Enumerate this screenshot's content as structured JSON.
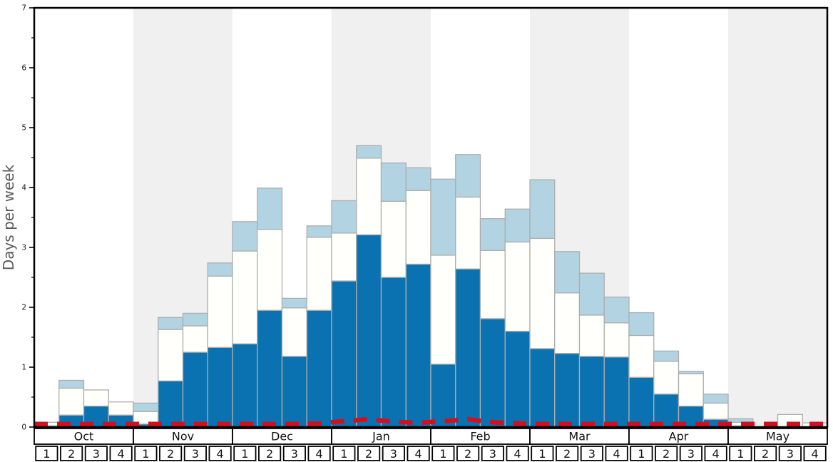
{
  "chart_data": {
    "type": "bar",
    "stacked": true,
    "title": "",
    "xlabel": "",
    "ylabel": "Days per week",
    "ylim": [
      0,
      7
    ],
    "y_major_ticks": [
      0,
      1,
      2,
      3,
      4,
      5,
      6,
      7
    ],
    "y_minor_step": 0.5,
    "grid": false,
    "legend": "none",
    "months": [
      "Oct",
      "Nov",
      "Dec",
      "Jan",
      "Feb",
      "Mar",
      "Apr",
      "May"
    ],
    "week_labels": [
      "1",
      "2",
      "3",
      "4"
    ],
    "shaded_month_indexes": [
      1,
      3,
      5,
      7
    ],
    "categories": [
      "Oct-1",
      "Oct-2",
      "Oct-3",
      "Oct-4",
      "Nov-1",
      "Nov-2",
      "Nov-3",
      "Nov-4",
      "Dec-1",
      "Dec-2",
      "Dec-3",
      "Dec-4",
      "Jan-1",
      "Jan-2",
      "Jan-3",
      "Jan-4",
      "Feb-1",
      "Feb-2",
      "Feb-3",
      "Feb-4",
      "Mar-1",
      "Mar-2",
      "Mar-3",
      "Mar-4",
      "Apr-1",
      "Apr-2",
      "Apr-3",
      "Apr-4",
      "May-1",
      "May-2",
      "May-3",
      "May-4"
    ],
    "series": [
      {
        "name": "dark-blue-segment",
        "color": "#0b72b1",
        "values": [
          0.02,
          0.2,
          0.35,
          0.2,
          0.05,
          0.77,
          1.25,
          1.33,
          1.39,
          1.95,
          1.18,
          1.95,
          2.44,
          3.21,
          2.5,
          2.72,
          1.05,
          2.64,
          1.81,
          1.6,
          1.31,
          1.23,
          1.18,
          1.17,
          0.83,
          0.55,
          0.35,
          0.13,
          0.02,
          0.0,
          0.0,
          0.0
        ]
      },
      {
        "name": "white-segment",
        "color": "#fffffb",
        "values": [
          0.06,
          0.45,
          0.27,
          0.22,
          0.21,
          0.86,
          0.44,
          1.19,
          1.55,
          1.35,
          0.81,
          1.22,
          0.8,
          1.28,
          1.27,
          1.23,
          1.82,
          1.2,
          1.14,
          1.49,
          1.84,
          1.01,
          0.69,
          0.57,
          0.7,
          0.55,
          0.54,
          0.27,
          0.06,
          0.0,
          0.21,
          0.07
        ]
      },
      {
        "name": "light-blue-segment",
        "color": "#b2d4e2",
        "values": [
          0.0,
          0.13,
          0.0,
          0.0,
          0.14,
          0.2,
          0.21,
          0.22,
          0.49,
          0.69,
          0.16,
          0.19,
          0.54,
          0.21,
          0.64,
          0.38,
          1.27,
          0.71,
          0.53,
          0.55,
          0.98,
          0.69,
          0.7,
          0.43,
          0.38,
          0.17,
          0.04,
          0.15,
          0.06,
          0.0,
          0.0,
          0.0
        ]
      }
    ],
    "red_dashed_line": {
      "name": "red-dashed-line",
      "color": "#d1101f",
      "values": [
        0.05,
        0.05,
        0.05,
        0.05,
        0.05,
        0.05,
        0.05,
        0.05,
        0.05,
        0.05,
        0.05,
        0.06,
        0.1,
        0.13,
        0.09,
        0.07,
        0.1,
        0.13,
        0.08,
        0.06,
        0.05,
        0.05,
        0.05,
        0.05,
        0.05,
        0.05,
        0.05,
        0.05,
        0.05,
        0.05,
        0.05,
        0.05
      ]
    }
  },
  "colors": {
    "plot_background": "#ffffff",
    "month_stripe": "#f0f0f0",
    "bar_border": "#adadad",
    "axis_border": "#000000",
    "tick_label": "#1a1a1a",
    "axis_label": "#595959",
    "table_border": "#000000",
    "table_fill": "#ffffff"
  }
}
